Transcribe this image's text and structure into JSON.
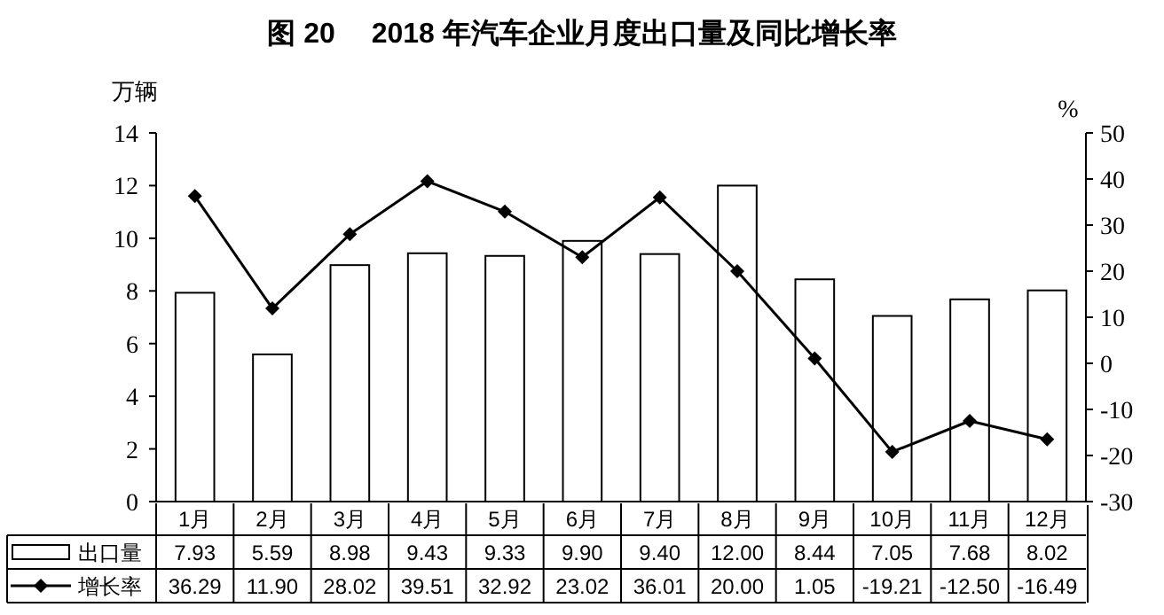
{
  "chart_data": {
    "type": "bar",
    "title": "图 20　 2018 年汽车企业月度出口量及同比增长率",
    "ylabel": "万辆",
    "y2label": "%",
    "categories": [
      "1月",
      "2月",
      "3月",
      "4月",
      "5月",
      "6月",
      "7月",
      "8月",
      "9月",
      "10月",
      "11月",
      "12月"
    ],
    "series": [
      {
        "name": "出口量",
        "color": "#ffffff",
        "values": [
          7.93,
          5.59,
          8.98,
          9.43,
          9.33,
          9.9,
          9.4,
          12.0,
          8.44,
          7.05,
          7.68,
          8.02
        ],
        "value_labels": [
          "7.93",
          "5.59",
          "8.98",
          "9.43",
          "9.33",
          "9.90",
          "9.40",
          "12.00",
          "8.44",
          "7.05",
          "7.68",
          "8.02"
        ]
      },
      {
        "name": "增长率",
        "type": "line",
        "axis": "y2",
        "color": "#000000",
        "marker": "diamond",
        "values": [
          36.29,
          11.9,
          28.02,
          39.51,
          32.92,
          23.02,
          36.01,
          20.0,
          1.05,
          -19.21,
          -12.5,
          -16.49
        ],
        "value_labels": [
          "36.29",
          "11.90",
          "28.02",
          "39.51",
          "32.92",
          "23.02",
          "36.01",
          "20.00",
          "1.05",
          "-19.21",
          "-12.50",
          "-16.49"
        ]
      }
    ],
    "ylim": [
      0,
      14
    ],
    "yticks": [
      0,
      2,
      4,
      6,
      8,
      10,
      12,
      14
    ],
    "y2lim": [
      -30,
      50
    ],
    "y2ticks": [
      -30,
      -20,
      -10,
      0,
      10,
      20,
      30,
      40,
      50
    ],
    "legend": "bottom left"
  }
}
